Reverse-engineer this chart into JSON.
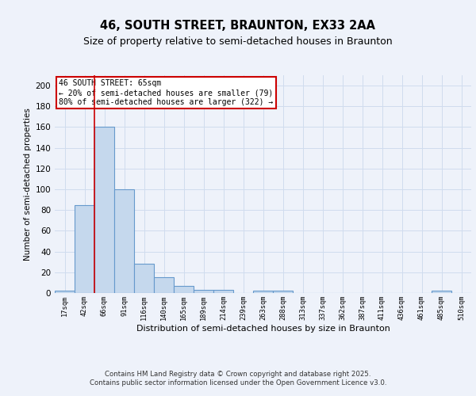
{
  "title1": "46, SOUTH STREET, BRAUNTON, EX33 2AA",
  "title2": "Size of property relative to semi-detached houses in Braunton",
  "xlabel": "Distribution of semi-detached houses by size in Braunton",
  "ylabel": "Number of semi-detached properties",
  "bar_labels": [
    "17sqm",
    "42sqm",
    "66sqm",
    "91sqm",
    "116sqm",
    "140sqm",
    "165sqm",
    "189sqm",
    "214sqm",
    "239sqm",
    "263sqm",
    "288sqm",
    "313sqm",
    "337sqm",
    "362sqm",
    "387sqm",
    "411sqm",
    "436sqm",
    "461sqm",
    "485sqm",
    "510sqm"
  ],
  "bar_values": [
    2,
    85,
    160,
    100,
    28,
    15,
    7,
    3,
    3,
    0,
    2,
    2,
    0,
    0,
    0,
    0,
    0,
    0,
    0,
    2,
    0
  ],
  "bar_color": "#c5d8ed",
  "bar_edge_color": "#6699cc",
  "grid_color": "#d0dcee",
  "background_color": "#eef2fa",
  "annotation_text": "46 SOUTH STREET: 65sqm\n← 20% of semi-detached houses are smaller (79)\n80% of semi-detached houses are larger (322) →",
  "annotation_box_color": "#ffffff",
  "annotation_border_color": "#cc0000",
  "property_line_color": "#cc0000",
  "property_line_bar_index": 2,
  "ylim": [
    0,
    210
  ],
  "yticks": [
    0,
    20,
    40,
    60,
    80,
    100,
    120,
    140,
    160,
    180,
    200
  ],
  "footer_text": "Contains HM Land Registry data © Crown copyright and database right 2025.\nContains public sector information licensed under the Open Government Licence v3.0.",
  "title1_fontsize": 10.5,
  "title2_fontsize": 9
}
